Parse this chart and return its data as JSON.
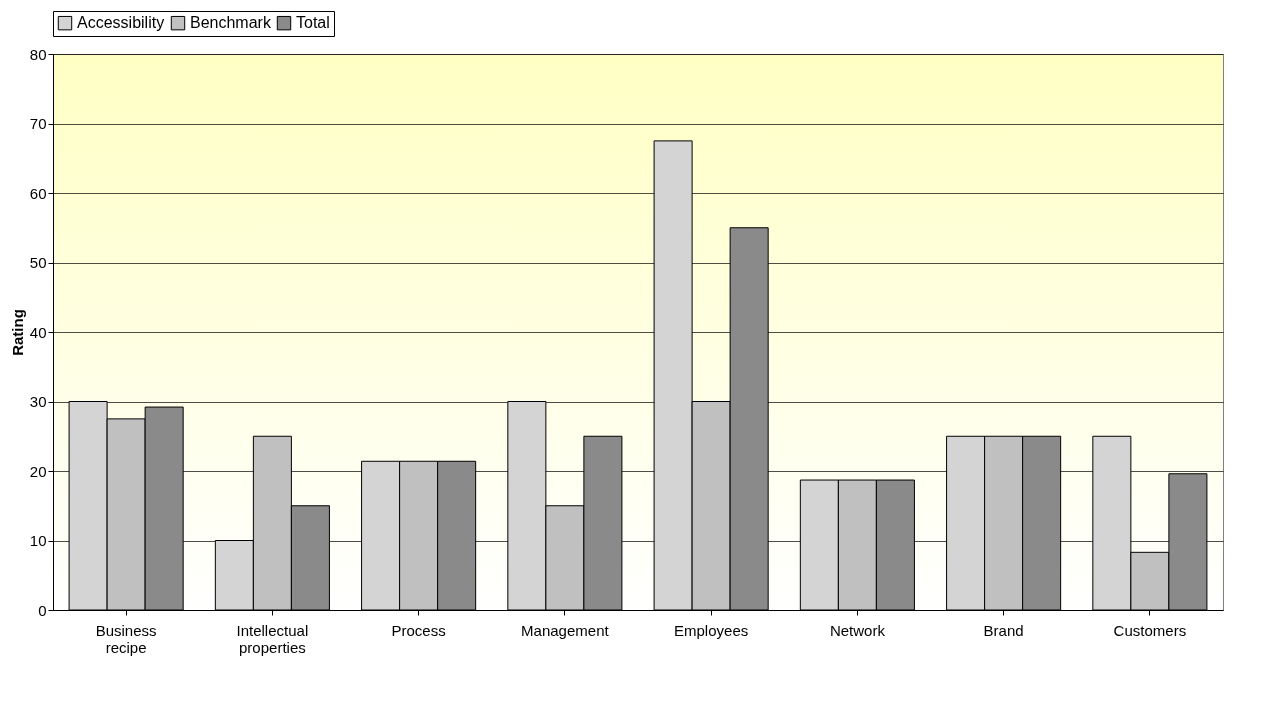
{
  "chart_data": {
    "type": "bar",
    "ylabel": "Rating",
    "categories": [
      "Business recipe",
      "Intellectual properties",
      "Process",
      "Management",
      "Employees",
      "Network",
      "Brand",
      "Customers"
    ],
    "series": [
      {
        "name": "Accessibility",
        "color": "#d4d4d4",
        "values": [
          30,
          10,
          21.4,
          30,
          67.5,
          18.7,
          25,
          25
        ]
      },
      {
        "name": "Benchmark",
        "color": "#c0c0c0",
        "values": [
          27.5,
          25,
          21.4,
          15,
          30,
          18.7,
          25,
          8.3
        ]
      },
      {
        "name": "Total",
        "color": "#8a8a8a",
        "values": [
          29.2,
          15,
          21.4,
          25,
          55,
          18.7,
          25,
          19.6
        ]
      }
    ],
    "ylim": [
      0,
      80
    ],
    "yticks": [
      0,
      10,
      20,
      30,
      40,
      50,
      60,
      70,
      80
    ],
    "grid": "y",
    "legend": "top"
  }
}
